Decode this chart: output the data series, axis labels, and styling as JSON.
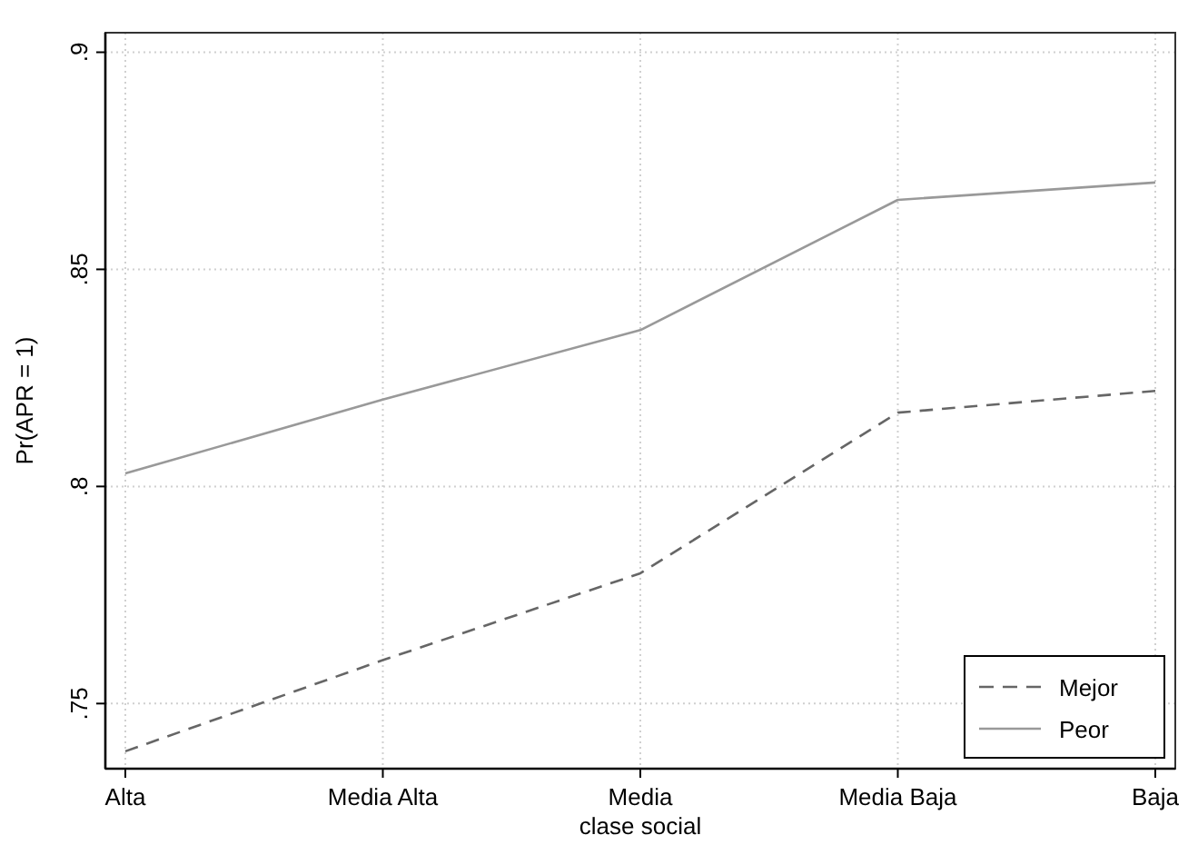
{
  "chart_data": {
    "type": "line",
    "xlabel": "clase social",
    "ylabel": "Pr(APR = 1)",
    "categories": [
      "Alta",
      "Media Alta",
      "Media",
      "Media Baja",
      "Baja"
    ],
    "series": [
      {
        "name": "Mejor",
        "color": "#666666",
        "line_style": "dashed",
        "values": [
          0.739,
          0.76,
          0.78,
          0.817,
          0.822
        ]
      },
      {
        "name": "Peor",
        "color": "#999999",
        "line_style": "solid",
        "values": [
          0.803,
          0.82,
          0.836,
          0.866,
          0.87
        ]
      }
    ],
    "ylim": [
      0.735,
      0.9045
    ],
    "yticks": [
      {
        "value": 0.75,
        "label": ".75"
      },
      {
        "value": 0.8,
        "label": ".8"
      },
      {
        "value": 0.85,
        "label": ".85"
      },
      {
        "value": 0.9,
        "label": ".9"
      }
    ],
    "grid": true,
    "legend": "bottom right",
    "marker": "none"
  }
}
